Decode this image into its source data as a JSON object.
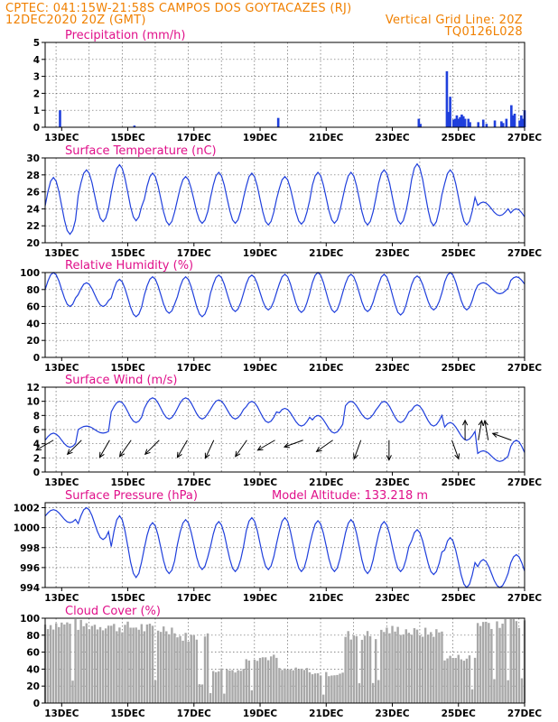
{
  "header": {
    "line1_left": "CPTEC:  041:15W-21:58S  CAMPOS DOS GOYTACAZES (RJ)",
    "line2_left": "12DEC2020 20Z (GMT)",
    "line2_right": "Vertical Grid Line: 20Z",
    "line3_right": "TQ0126L028"
  },
  "colors": {
    "header": "#f08000",
    "title": "#e0108a",
    "series": "#1f3fdc",
    "cloud": "#a8a8a8"
  },
  "x_axis": {
    "ticks": [
      {
        "day": 13,
        "label": "13DEC"
      },
      {
        "day": 15,
        "label": "15DEC"
      },
      {
        "day": 17,
        "label": "17DEC"
      },
      {
        "day": 19,
        "label": "19DEC"
      },
      {
        "day": 21,
        "label": "21DEC"
      },
      {
        "day": 23,
        "label": "23DEC"
      },
      {
        "day": 25,
        "label": "25DEC"
      },
      {
        "day": 27,
        "label": "27DEC"
      }
    ],
    "range_days": [
      12.5,
      27.0
    ],
    "grid_days": [
      12.83,
      13.83,
      14.83,
      15.83,
      16.83,
      17.83,
      18.83,
      19.83,
      20.83,
      21.83,
      22.83,
      23.83,
      24.83,
      25.83,
      26.83
    ]
  },
  "chart_data": [
    {
      "id": "precip",
      "type": "bar",
      "title": "Precipitation (mm/h)",
      "ylim": [
        0,
        5
      ],
      "yticks": [
        "0",
        "1",
        "2",
        "3",
        "4",
        "5"
      ],
      "x": [
        12.95,
        15.2,
        19.55,
        23.8,
        23.85,
        24.65,
        24.7,
        24.75,
        24.85,
        24.9,
        24.95,
        25.0,
        25.05,
        25.1,
        25.15,
        25.2,
        25.3,
        25.35,
        25.6,
        25.75,
        25.85,
        26.1,
        26.3,
        26.35,
        26.45,
        26.6,
        26.65,
        26.7,
        26.85,
        26.9,
        26.95,
        27.0
      ],
      "values": [
        1.0,
        0.1,
        0.55,
        0.5,
        0.2,
        3.3,
        0.9,
        1.8,
        0.45,
        0.5,
        0.7,
        0.5,
        0.6,
        0.75,
        0.65,
        0.5,
        0.5,
        0.3,
        0.3,
        0.45,
        0.2,
        0.4,
        0.35,
        0.25,
        0.5,
        1.3,
        0.7,
        0.8,
        0.4,
        0.7,
        0.5,
        1.0
      ]
    },
    {
      "id": "temp",
      "type": "line",
      "title": "Surface Temperature (nC)",
      "ylim": [
        20,
        30
      ],
      "yticks": [
        "20",
        "22",
        "24",
        "26",
        "28",
        "30"
      ],
      "daily_max": [
        27.7,
        28.6,
        29.2,
        28.2,
        27.8,
        28.3,
        28.2,
        27.8,
        28.3,
        28.3,
        28.6,
        29.3,
        28.6,
        24.8,
        24.0,
        23.7
      ],
      "daily_min": [
        21.0,
        22.5,
        22.6,
        22.1,
        22.3,
        22.3,
        22.1,
        22.2,
        22.3,
        22.1,
        22.2,
        22.0,
        22.1,
        23.2,
        22.1,
        22.1
      ]
    },
    {
      "id": "rh",
      "type": "line",
      "title": "Relative Humidity (%)",
      "ylim": [
        0,
        100
      ],
      "yticks": [
        "0",
        "20",
        "40",
        "60",
        "80",
        "100"
      ],
      "daily_max": [
        100,
        88,
        92,
        95,
        95,
        97,
        97,
        98,
        100,
        98,
        98,
        96,
        100,
        88,
        95,
        96
      ],
      "daily_min": [
        60,
        60,
        48,
        52,
        48,
        54,
        56,
        53,
        53,
        54,
        50,
        56,
        56,
        75,
        78,
        82
      ]
    },
    {
      "id": "wind",
      "type": "line",
      "title": "Surface Wind (m/s)",
      "ylim": [
        0,
        12
      ],
      "yticks": [
        "0",
        "2",
        "4",
        "6",
        "8",
        "10",
        "12"
      ],
      "daily_max": [
        5.5,
        6.5,
        10.0,
        10.5,
        10.5,
        10.2,
        10.0,
        9.0,
        8.0,
        10.0,
        10.0,
        9.5,
        7.0,
        3.0,
        4.5,
        6.0
      ],
      "daily_min": [
        3.5,
        5.5,
        7.0,
        7.5,
        7.5,
        7.5,
        7.0,
        6.5,
        5.5,
        7.5,
        7.0,
        6.5,
        4.5,
        1.5,
        1.0,
        2.0
      ],
      "vector_days": [
        12.75,
        13.6,
        14.45,
        15.1,
        15.95,
        16.8,
        17.6,
        18.6,
        19.45,
        20.3,
        21.2,
        22.05,
        22.9,
        24.8,
        25.2,
        25.6,
        25.9,
        26.6
      ],
      "vector_dirs_deg": [
        210,
        225,
        240,
        235,
        225,
        240,
        245,
        235,
        210,
        200,
        215,
        250,
        270,
        290,
        90,
        80,
        100,
        160
      ]
    },
    {
      "id": "pressure",
      "type": "line",
      "title": "Surface Pressure (hPa)",
      "annotation": "Model Altitude: 133.218 m",
      "ylim": [
        994,
        1002.5
      ],
      "yticks": [
        "994",
        "996",
        "998",
        "1000",
        "1002"
      ],
      "daily_max": [
        1001.8,
        1002.0,
        1001.2,
        1000.5,
        1000.8,
        1000.6,
        1001.0,
        1001.0,
        1000.7,
        1000.8,
        1000.6,
        999.8,
        999.0,
        996.8,
        997.3,
        998.6
      ],
      "daily_min": [
        1000.5,
        998.8,
        995.0,
        995.4,
        995.8,
        995.6,
        995.8,
        995.6,
        995.6,
        995.4,
        995.6,
        995.3,
        994.0,
        994.0,
        994.0,
        995.5
      ]
    },
    {
      "id": "cloud",
      "type": "area",
      "title": "Cloud Cover (%)",
      "ylim": [
        0,
        100
      ],
      "yticks": [
        "0",
        "20",
        "40",
        "60",
        "80",
        "100"
      ],
      "typical_percent": [
        95,
        94,
        92,
        90,
        80,
        40,
        55,
        40,
        35,
        82,
        88,
        85,
        55,
        97,
        98,
        99
      ]
    }
  ]
}
